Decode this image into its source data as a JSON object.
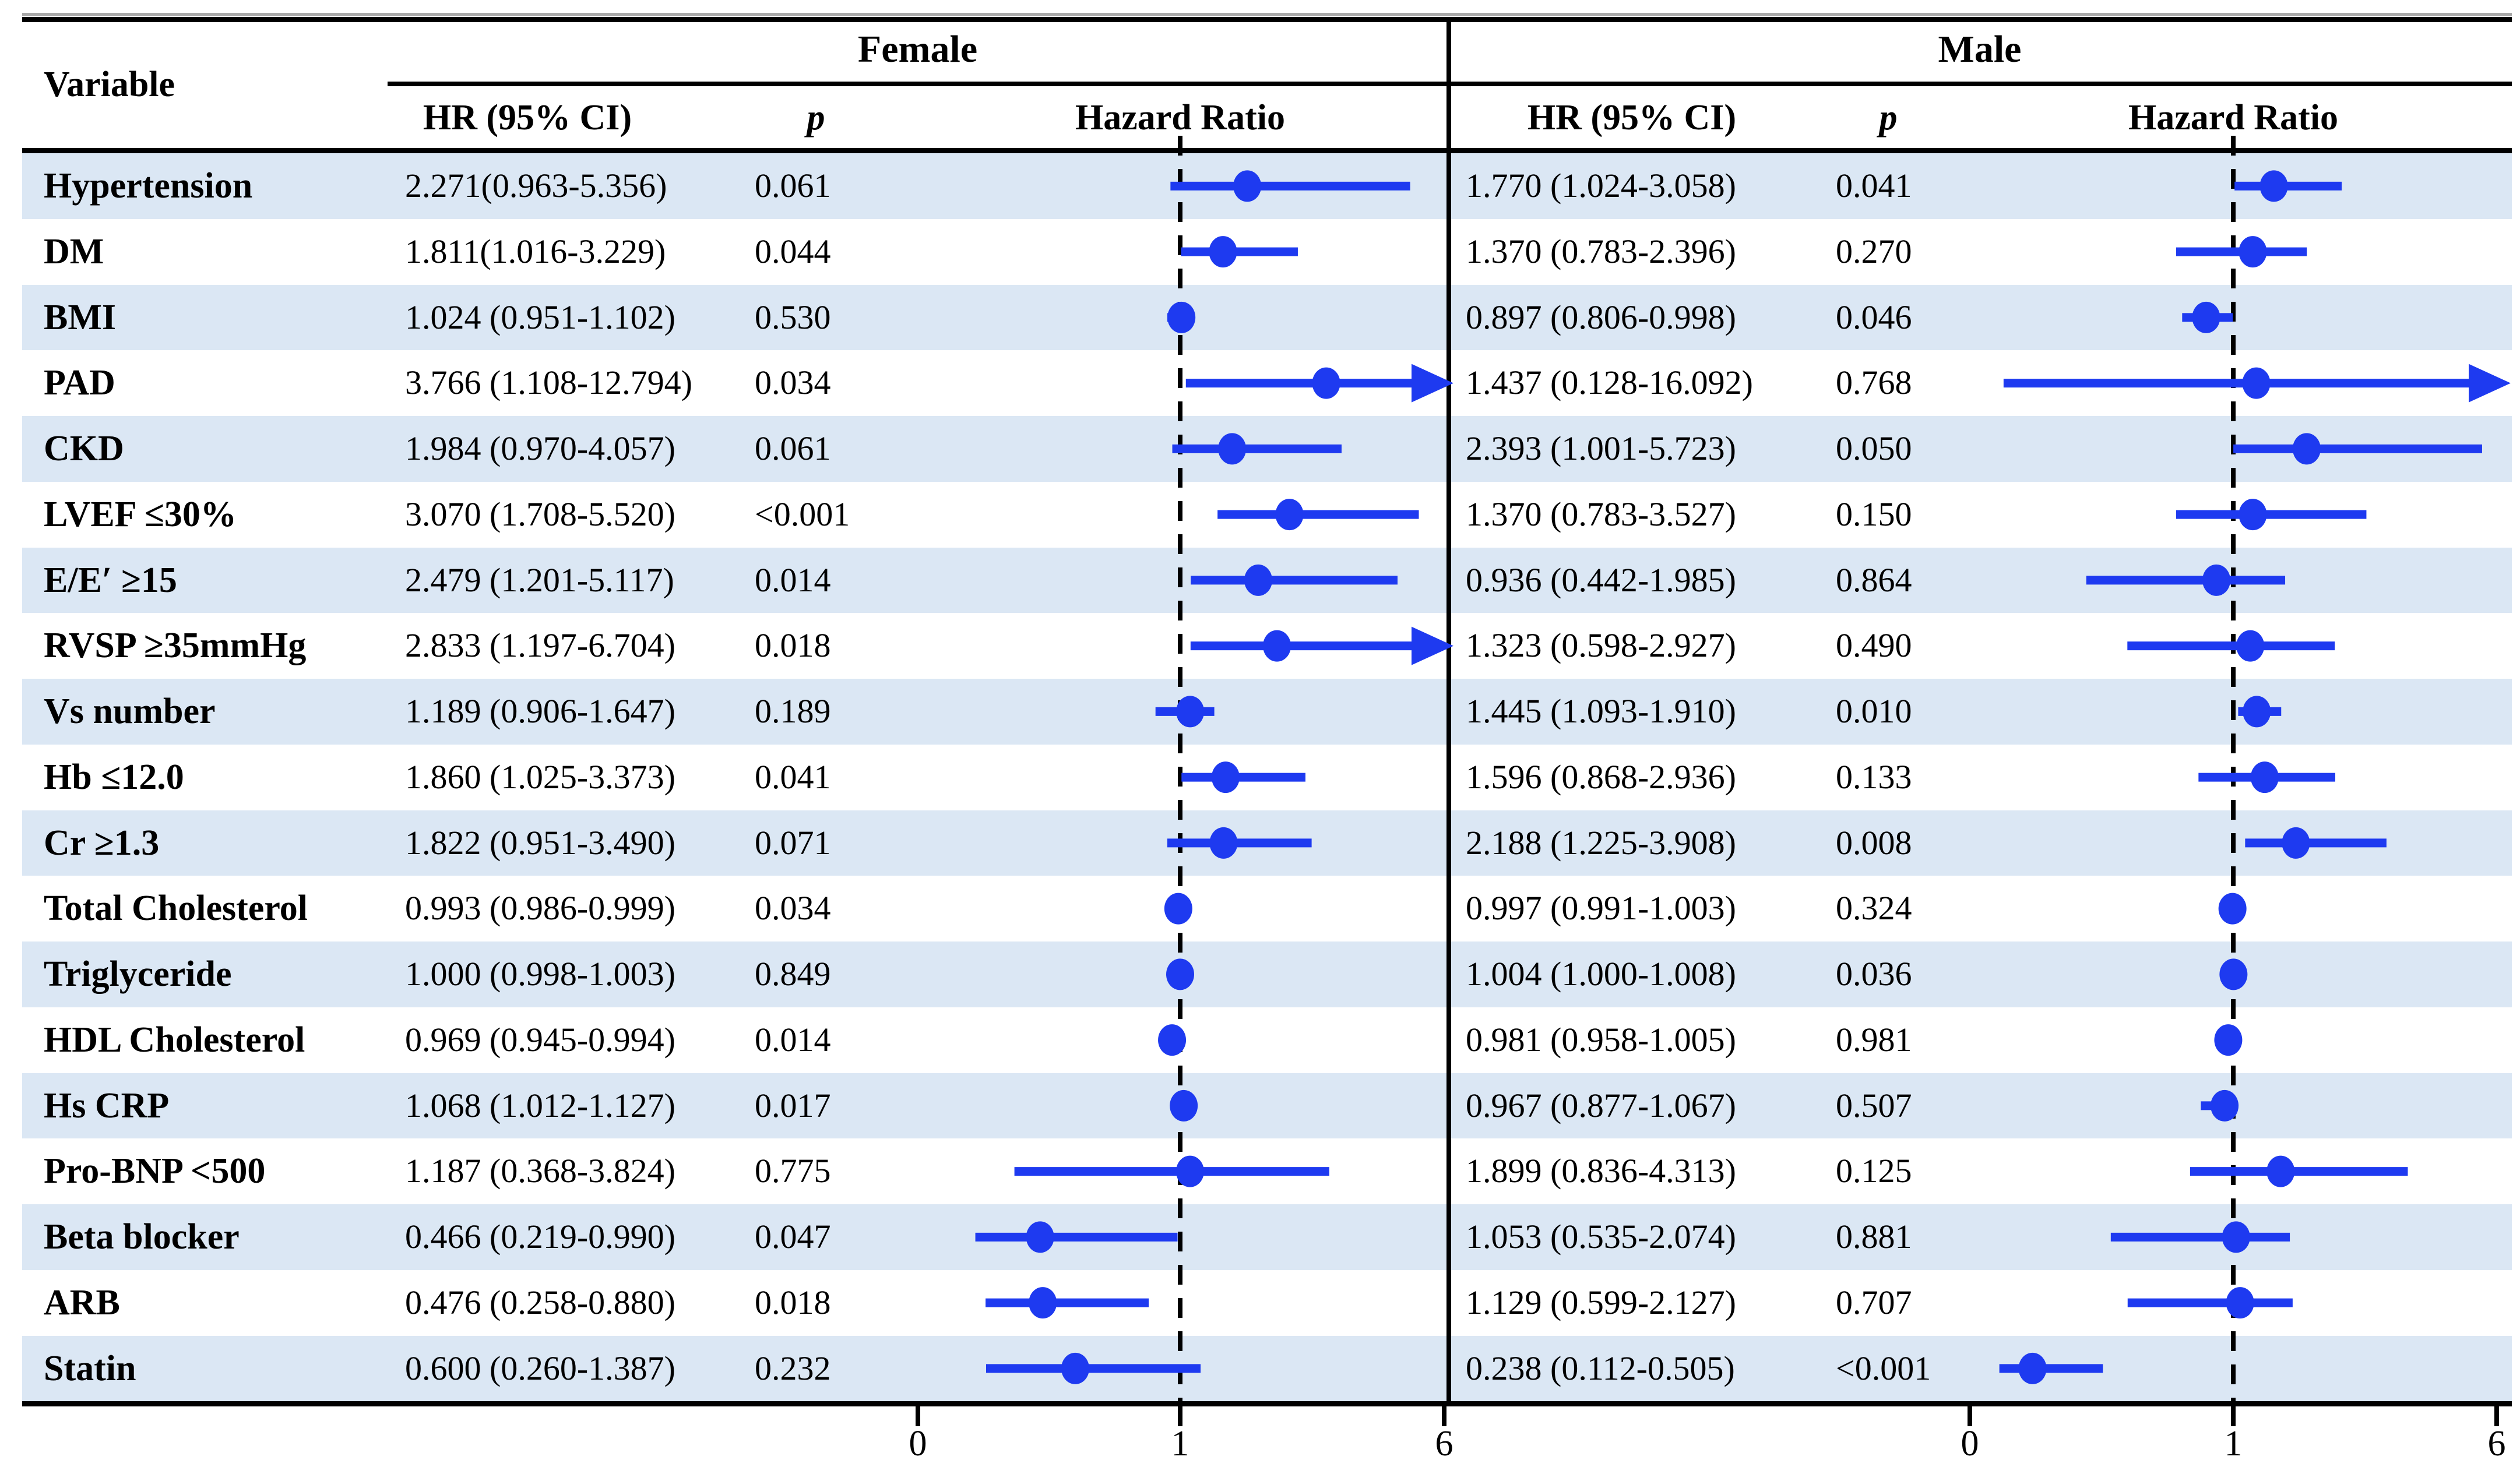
{
  "header": {
    "variable_label": "Variable",
    "female_label": "Female",
    "male_label": "Male",
    "hr_col_label": "HR (95% CI)",
    "p_col_label": "p",
    "plot_col_label": "Hazard Ratio"
  },
  "colors": {
    "marker_blue": "#1e3af0",
    "stripe_blue": "#dbe7f4",
    "rule_black": "#000000",
    "top_accent_gray": "#a8a8a8"
  },
  "chart_data": {
    "type": "forest",
    "panels": [
      "Female",
      "Male"
    ],
    "axis": {
      "ticks": [
        0,
        1,
        6
      ],
      "xmin": 0,
      "xmax": 6,
      "reference_line": 1,
      "scale_note": "piecewise linear: 0-1 and 1-6 spans rendered at equal widths",
      "overflow_note": "confidence intervals with upper bound beyond 6 are drawn as arrows"
    },
    "rows": [
      {
        "variable": "Hypertension",
        "female": {
          "hr_ci": "2.271(0.963-5.356)",
          "p": "0.061",
          "hr": 2.271,
          "lo": 0.963,
          "hi": 5.356
        },
        "male": {
          "hr_ci": "1.770 (1.024-3.058)",
          "p": "0.041",
          "hr": 1.77,
          "lo": 1.024,
          "hi": 3.058
        }
      },
      {
        "variable": "DM",
        "female": {
          "hr_ci": "1.811(1.016-3.229)",
          "p": "0.044",
          "hr": 1.811,
          "lo": 1.016,
          "hi": 3.229
        },
        "male": {
          "hr_ci": "1.370 (0.783-2.396)",
          "p": "0.270",
          "hr": 1.37,
          "lo": 0.783,
          "hi": 2.396
        }
      },
      {
        "variable": "BMI",
        "female": {
          "hr_ci": "1.024 (0.951-1.102)",
          "p": "0.530",
          "hr": 1.024,
          "lo": 0.951,
          "hi": 1.102
        },
        "male": {
          "hr_ci": "0.897 (0.806-0.998)",
          "p": "0.046",
          "hr": 0.897,
          "lo": 0.806,
          "hi": 0.998
        }
      },
      {
        "variable": "PAD",
        "female": {
          "hr_ci": "3.766 (1.108-12.794)",
          "p": "0.034",
          "hr": 3.766,
          "lo": 1.108,
          "hi": 12.794
        },
        "male": {
          "hr_ci": "1.437 (0.128-16.092)",
          "p": "0.768",
          "hr": 1.437,
          "lo": 0.128,
          "hi": 16.092
        }
      },
      {
        "variable": "CKD",
        "female": {
          "hr_ci": "1.984 (0.970-4.057)",
          "p": "0.061",
          "hr": 1.984,
          "lo": 0.97,
          "hi": 4.057
        },
        "male": {
          "hr_ci": "2.393 (1.001-5.723)",
          "p": "0.050",
          "hr": 2.393,
          "lo": 1.001,
          "hi": 5.723
        }
      },
      {
        "variable": "LVEF ≤30%",
        "female": {
          "hr_ci": "3.070 (1.708-5.520)",
          "p": "<0.001",
          "hr": 3.07,
          "lo": 1.708,
          "hi": 5.52
        },
        "male": {
          "hr_ci": "1.370 (0.783-3.527)",
          "p": "0.150",
          "hr": 1.37,
          "lo": 0.783,
          "hi": 3.527
        }
      },
      {
        "variable": "E/E′ ≥15",
        "female": {
          "hr_ci": "2.479 (1.201-5.117)",
          "p": "0.014",
          "hr": 2.479,
          "lo": 1.201,
          "hi": 5.117
        },
        "male": {
          "hr_ci": "0.936 (0.442-1.985)",
          "p": "0.864",
          "hr": 0.936,
          "lo": 0.442,
          "hi": 1.985
        }
      },
      {
        "variable": "RVSP ≥35mmHg",
        "female": {
          "hr_ci": "2.833 (1.197-6.704)",
          "p": "0.018",
          "hr": 2.833,
          "lo": 1.197,
          "hi": 6.704
        },
        "male": {
          "hr_ci": "1.323 (0.598-2.927)",
          "p": "0.490",
          "hr": 1.323,
          "lo": 0.598,
          "hi": 2.927
        }
      },
      {
        "variable": "Vs number",
        "female": {
          "hr_ci": "1.189 (0.906-1.647)",
          "p": "0.189",
          "hr": 1.189,
          "lo": 0.906,
          "hi": 1.647
        },
        "male": {
          "hr_ci": "1.445 (1.093-1.910)",
          "p": "0.010",
          "hr": 1.445,
          "lo": 1.093,
          "hi": 1.91
        }
      },
      {
        "variable": "Hb ≤12.0",
        "female": {
          "hr_ci": "1.860 (1.025-3.373)",
          "p": "0.041",
          "hr": 1.86,
          "lo": 1.025,
          "hi": 3.373
        },
        "male": {
          "hr_ci": "1.596 (0.868-2.936)",
          "p": "0.133",
          "hr": 1.596,
          "lo": 0.868,
          "hi": 2.936
        }
      },
      {
        "variable": "Cr ≥1.3",
        "female": {
          "hr_ci": "1.822 (0.951-3.490)",
          "p": "0.071",
          "hr": 1.822,
          "lo": 0.951,
          "hi": 3.49
        },
        "male": {
          "hr_ci": "2.188 (1.225-3.908)",
          "p": "0.008",
          "hr": 2.188,
          "lo": 1.225,
          "hi": 3.908
        }
      },
      {
        "variable": "Total Cholesterol",
        "female": {
          "hr_ci": "0.993 (0.986-0.999)",
          "p": "0.034",
          "hr": 0.993,
          "lo": 0.986,
          "hi": 0.999
        },
        "male": {
          "hr_ci": "0.997 (0.991-1.003)",
          "p": "0.324",
          "hr": 0.997,
          "lo": 0.991,
          "hi": 1.003
        }
      },
      {
        "variable": "Triglyceride",
        "female": {
          "hr_ci": "1.000 (0.998-1.003)",
          "p": "0.849",
          "hr": 1.0,
          "lo": 0.998,
          "hi": 1.003
        },
        "male": {
          "hr_ci": "1.004 (1.000-1.008)",
          "p": "0.036",
          "hr": 1.004,
          "lo": 1.0,
          "hi": 1.008
        }
      },
      {
        "variable": "HDL Cholesterol",
        "female": {
          "hr_ci": "0.969 (0.945-0.994)",
          "p": "0.014",
          "hr": 0.969,
          "lo": 0.945,
          "hi": 0.994
        },
        "male": {
          "hr_ci": "0.981 (0.958-1.005)",
          "p": "0.981",
          "hr": 0.981,
          "lo": 0.958,
          "hi": 1.005
        }
      },
      {
        "variable": "Hs CRP",
        "female": {
          "hr_ci": "1.068 (1.012-1.127)",
          "p": "0.017",
          "hr": 1.068,
          "lo": 1.012,
          "hi": 1.127
        },
        "male": {
          "hr_ci": "0.967 (0.877-1.067)",
          "p": "0.507",
          "hr": 0.967,
          "lo": 0.877,
          "hi": 1.067
        }
      },
      {
        "variable": "Pro-BNP <500",
        "female": {
          "hr_ci": "1.187 (0.368-3.824)",
          "p": "0.775",
          "hr": 1.187,
          "lo": 0.368,
          "hi": 3.824
        },
        "male": {
          "hr_ci": "1.899 (0.836-4.313)",
          "p": "0.125",
          "hr": 1.899,
          "lo": 0.836,
          "hi": 4.313
        }
      },
      {
        "variable": "Beta blocker",
        "female": {
          "hr_ci": "0.466 (0.219-0.990)",
          "p": "0.047",
          "hr": 0.466,
          "lo": 0.219,
          "hi": 0.99
        },
        "male": {
          "hr_ci": "1.053 (0.535-2.074)",
          "p": "0.881",
          "hr": 1.053,
          "lo": 0.535,
          "hi": 2.074
        }
      },
      {
        "variable": "ARB",
        "female": {
          "hr_ci": "0.476 (0.258-0.880)",
          "p": "0.018",
          "hr": 0.476,
          "lo": 0.258,
          "hi": 0.88
        },
        "male": {
          "hr_ci": "1.129 (0.599-2.127)",
          "p": "0.707",
          "hr": 1.129,
          "lo": 0.599,
          "hi": 2.127
        }
      },
      {
        "variable": "Statin",
        "female": {
          "hr_ci": "0.600 (0.260-1.387)",
          "p": "0.232",
          "hr": 0.6,
          "lo": 0.26,
          "hi": 1.387
        },
        "male": {
          "hr_ci": "0.238 (0.112-0.505)",
          "p": "<0.001",
          "hr": 0.238,
          "lo": 0.112,
          "hi": 0.505
        }
      }
    ]
  }
}
